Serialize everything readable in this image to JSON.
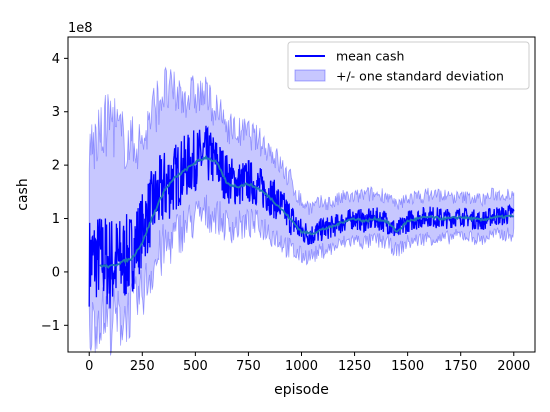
{
  "chart_data": {
    "type": "line",
    "xlabel": "episode",
    "ylabel": "cash",
    "y_scale_label": "1e8",
    "xlim": [
      -100,
      2100
    ],
    "ylim": [
      -1.5,
      4.4
    ],
    "x_ticks": [
      0,
      250,
      500,
      750,
      1000,
      1250,
      1500,
      1750,
      2000
    ],
    "x_tick_labels": [
      "0",
      "250",
      "500",
      "750",
      "1000",
      "1250",
      "1500",
      "1750",
      "2000"
    ],
    "y_ticks": [
      -1,
      0,
      1,
      2,
      3,
      4
    ],
    "y_tick_labels": [
      "−1",
      "0",
      "1",
      "2",
      "3",
      "4"
    ],
    "grid": false,
    "legend": {
      "placement": "top-right",
      "entries": [
        "mean cash",
        "+/- one standard deviation"
      ]
    },
    "series": [
      {
        "name": "mean cash",
        "color": "#0000ff",
        "x": [
          0,
          50,
          100,
          150,
          200,
          250,
          300,
          350,
          400,
          450,
          500,
          550,
          600,
          650,
          700,
          750,
          800,
          850,
          900,
          950,
          1000,
          1050,
          1100,
          1150,
          1200,
          1250,
          1300,
          1350,
          1400,
          1450,
          1500,
          1550,
          1600,
          1650,
          1700,
          1750,
          1800,
          1850,
          1900,
          1950,
          2000
        ],
        "y": [
          0.2,
          0.3,
          0.15,
          0.2,
          0.35,
          0.8,
          1.25,
          1.55,
          1.75,
          1.95,
          2.1,
          2.2,
          2.05,
          1.75,
          1.65,
          1.7,
          1.6,
          1.45,
          1.25,
          1.0,
          0.75,
          0.7,
          0.8,
          0.85,
          0.95,
          1.0,
          0.95,
          1.0,
          0.95,
          0.75,
          0.95,
          1.0,
          1.05,
          1.0,
          1.0,
          1.05,
          1.0,
          0.95,
          1.05,
          1.05,
          1.1
        ]
      },
      {
        "name": "+/- one standard deviation",
        "color": "#0000ff",
        "opacity": 0.22,
        "x": [
          0,
          50,
          100,
          150,
          200,
          250,
          300,
          350,
          400,
          450,
          500,
          550,
          600,
          650,
          700,
          750,
          800,
          850,
          900,
          950,
          1000,
          1050,
          1100,
          1150,
          1200,
          1250,
          1300,
          1350,
          1400,
          1450,
          1500,
          1550,
          1600,
          1650,
          1700,
          1750,
          1800,
          1850,
          1900,
          1950,
          2000
        ],
        "y_lower": [
          -1.1,
          -0.8,
          -0.9,
          -0.9,
          -0.7,
          -0.4,
          0.1,
          0.4,
          0.65,
          0.85,
          1.0,
          1.1,
          1.05,
          0.85,
          0.85,
          0.9,
          0.9,
          0.75,
          0.6,
          0.4,
          0.3,
          0.3,
          0.4,
          0.45,
          0.55,
          0.6,
          0.55,
          0.6,
          0.55,
          0.4,
          0.55,
          0.6,
          0.65,
          0.6,
          0.65,
          0.7,
          0.65,
          0.6,
          0.7,
          0.7,
          0.7
        ],
        "y_upper": [
          2.3,
          2.5,
          2.9,
          2.5,
          2.4,
          2.4,
          3.0,
          3.4,
          3.3,
          3.3,
          3.3,
          3.3,
          3.0,
          2.75,
          2.6,
          2.6,
          2.45,
          2.3,
          2.0,
          1.7,
          1.3,
          1.2,
          1.3,
          1.3,
          1.4,
          1.4,
          1.45,
          1.45,
          1.45,
          1.2,
          1.4,
          1.4,
          1.45,
          1.45,
          1.4,
          1.4,
          1.4,
          1.35,
          1.45,
          1.45,
          1.5
        ]
      },
      {
        "name": "",
        "color": "#1f77b4",
        "x": [
          50,
          100,
          150,
          200,
          250,
          300,
          350,
          400,
          450,
          500,
          550,
          600,
          650,
          700,
          750,
          800,
          850,
          900,
          950,
          1000,
          1050,
          1100,
          1150,
          1200,
          1250,
          1300,
          1350,
          1400,
          1450,
          1500,
          1550,
          1600,
          1650,
          1700,
          1750,
          1800,
          1850,
          1900,
          1950,
          2000
        ],
        "y": [
          0.12,
          0.1,
          0.18,
          0.25,
          0.55,
          1.05,
          1.5,
          1.75,
          1.9,
          2.05,
          2.15,
          2.05,
          1.65,
          1.6,
          1.65,
          1.55,
          1.4,
          1.2,
          0.98,
          0.75,
          0.72,
          0.8,
          0.85,
          0.95,
          1.0,
          0.95,
          1.0,
          0.95,
          0.75,
          0.95,
          1.0,
          1.03,
          1.0,
          1.0,
          1.03,
          1.0,
          0.97,
          1.02,
          1.03,
          1.05
        ]
      }
    ]
  }
}
